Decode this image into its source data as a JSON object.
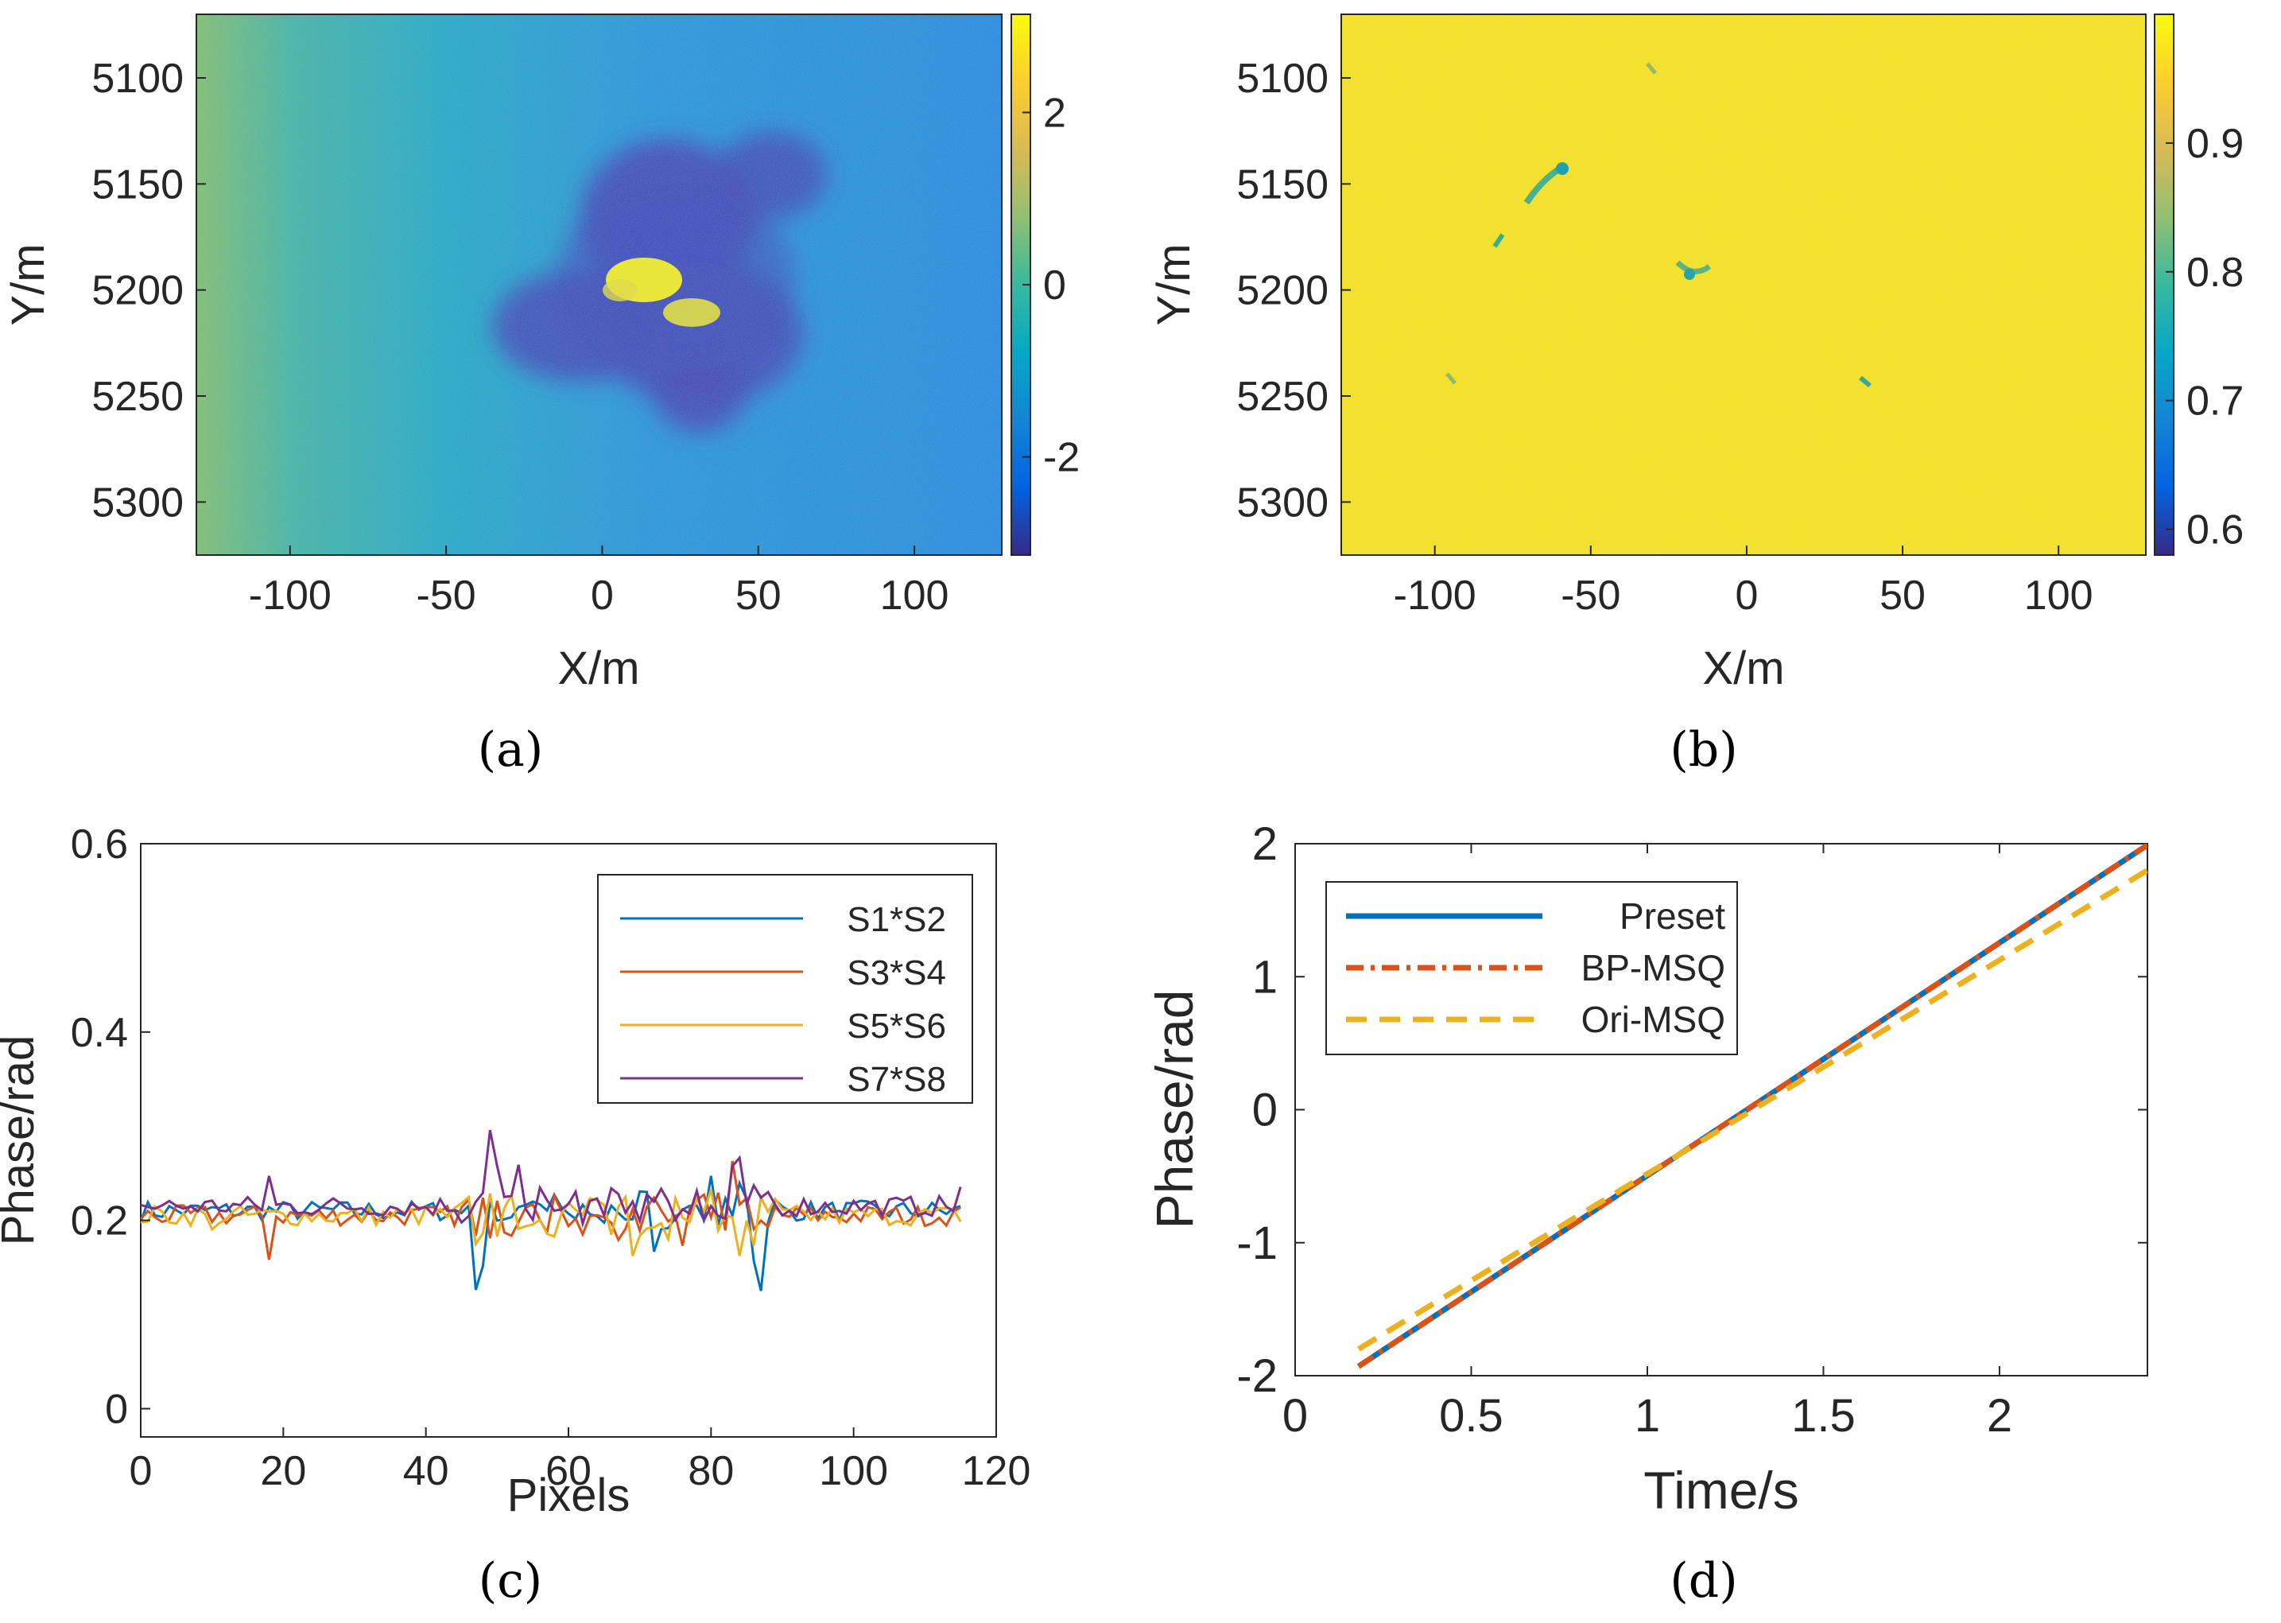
{
  "panels": {
    "a": {
      "caption": "(a)"
    },
    "b": {
      "caption": "(b)"
    },
    "c": {
      "caption": "(c)"
    },
    "d": {
      "caption": "(d)"
    }
  },
  "colors": {
    "blue": "#0072bd",
    "orange": "#d95319",
    "yellow": "#edb120",
    "purple": "#7e2f8e",
    "parula": [
      "#352a87",
      "#0363e1",
      "#1485d4",
      "#06a7c6",
      "#38b99e",
      "#92bf73",
      "#d9ba56",
      "#fcce2e",
      "#f9fb0e"
    ]
  },
  "chart_data": [
    {
      "type": "heatmap",
      "id": "a",
      "xlabel": "X/m",
      "ylabel": "Y/m",
      "xlim": [
        -130,
        128
      ],
      "ylim": [
        5325,
        5070
      ],
      "xticks": [
        -100,
        -50,
        0,
        50,
        100
      ],
      "xtick_labels": [
        "-100",
        "-50",
        "0",
        "50",
        "100"
      ],
      "yticks": [
        5100,
        5150,
        5200,
        5250,
        5300
      ],
      "ytick_labels": [
        "5100",
        "5150",
        "5200",
        "5250",
        "5300"
      ],
      "colorbar": {
        "range": [
          -3.14,
          3.14
        ],
        "ticks": [
          2,
          0,
          -2
        ],
        "tick_labels": [
          "2",
          "0",
          "-2"
        ]
      },
      "description_values": {
        "background_phase": -1.2,
        "left_edge_phase": 0.2,
        "blob_phase": -2.6,
        "center_phase": 3.0
      }
    },
    {
      "type": "heatmap",
      "id": "b",
      "xlabel": "X/m",
      "ylabel": "Y/m",
      "xlim": [
        -130,
        128
      ],
      "ylim": [
        5325,
        5070
      ],
      "xticks": [
        -100,
        -50,
        0,
        50,
        100
      ],
      "xtick_labels": [
        "-100",
        "-50",
        "0",
        "50",
        "100"
      ],
      "yticks": [
        5100,
        5150,
        5200,
        5250,
        5300
      ],
      "ytick_labels": [
        "5100",
        "5150",
        "5200",
        "5250",
        "5300"
      ],
      "colorbar": {
        "range": [
          0.58,
          1.0
        ],
        "ticks": [
          0.9,
          0.8,
          0.7,
          0.6
        ],
        "tick_labels": [
          "0.9",
          "0.8",
          "0.7",
          "0.6"
        ]
      },
      "description_values": {
        "background_coherence": 0.97
      }
    },
    {
      "type": "line",
      "id": "c",
      "xlabel": "Pixels",
      "ylabel": "Phase/rad",
      "xlim": [
        0,
        120
      ],
      "ylim": [
        -0.03,
        0.6
      ],
      "xticks": [
        0,
        20,
        40,
        60,
        80,
        100,
        120
      ],
      "xtick_labels": [
        "0",
        "20",
        "40",
        "60",
        "80",
        "100",
        "120"
      ],
      "yticks": [
        0,
        0.2,
        0.4,
        0.6
      ],
      "ytick_labels": [
        "0",
        "0.2",
        "0.4",
        "0.6"
      ],
      "legend_position": "top-right",
      "series": [
        {
          "name": "S1*S2",
          "color": "#0072bd",
          "x_range": [
            0,
            115
          ],
          "base": 0.21
        },
        {
          "name": "S3*S4",
          "color": "#d95319",
          "x_range": [
            0,
            115
          ],
          "base": 0.205
        },
        {
          "name": "S5*S6",
          "color": "#edb120",
          "x_range": [
            0,
            115
          ],
          "base": 0.205
        },
        {
          "name": "S7*S8",
          "color": "#7e2f8e",
          "x_range": [
            0,
            115
          ],
          "base": 0.215
        }
      ]
    },
    {
      "type": "line",
      "id": "d",
      "xlabel": "Time/s",
      "ylabel": "Phase/rad",
      "xlim": [
        0,
        2.42
      ],
      "ylim": [
        -2,
        2
      ],
      "xticks": [
        0,
        0.5,
        1,
        1.5,
        2
      ],
      "xtick_labels": [
        "0",
        "0.5",
        "1",
        "1.5",
        "2"
      ],
      "yticks": [
        -2,
        -1,
        0,
        1,
        2
      ],
      "ytick_labels": [
        "-2",
        "-1",
        "0",
        "1",
        "2"
      ],
      "legend_position": "top-left",
      "series": [
        {
          "name": "Preset",
          "color": "#0072bd",
          "style": "solid",
          "x": [
            0.18,
            2.42
          ],
          "y": [
            -1.93,
            1.99
          ]
        },
        {
          "name": "BP-MSQ",
          "color": "#d95319",
          "style": "dashdot",
          "x": [
            0.18,
            2.42
          ],
          "y": [
            -1.93,
            1.99
          ]
        },
        {
          "name": "Ori-MSQ",
          "color": "#edb120",
          "style": "dashed",
          "x": [
            0.18,
            2.42
          ],
          "y": [
            -1.8,
            1.8
          ]
        }
      ]
    }
  ]
}
